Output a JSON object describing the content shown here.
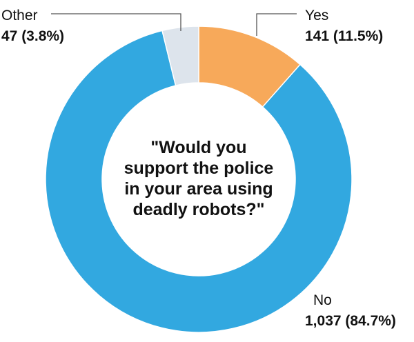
{
  "chart_data": {
    "type": "pie",
    "style": "donut",
    "title": "\"Would you support the police in your area using deadly robots?\"",
    "title_lines": [
      "\"Would you",
      "support the police",
      "in your area using",
      "deadly robots?\""
    ],
    "slices": [
      {
        "label": "Yes",
        "value": 141,
        "percent": 11.5,
        "display": "141 (11.5%)",
        "color": "#f7a95a"
      },
      {
        "label": "No",
        "value": 1037,
        "percent": 84.7,
        "display": "1,037 (84.7%)",
        "color": "#32a8e0"
      },
      {
        "label": "Other",
        "value": 47,
        "percent": 3.8,
        "display": "47 (3.8%)",
        "color": "#dde4ec"
      }
    ],
    "start": "12 o'clock",
    "direction": "clockwise"
  }
}
